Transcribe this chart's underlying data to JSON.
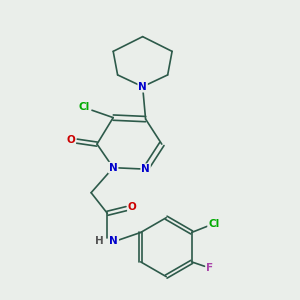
{
  "bg_color": "#eaeeea",
  "bond_color": "#2d5a4a",
  "atom_colors": {
    "N": "#0000cc",
    "O": "#cc0000",
    "Cl": "#00aa00",
    "F": "#aa44aa",
    "H": "#555555",
    "C": "#2d5a4a"
  },
  "font_size": 7.5,
  "lw": 1.2
}
